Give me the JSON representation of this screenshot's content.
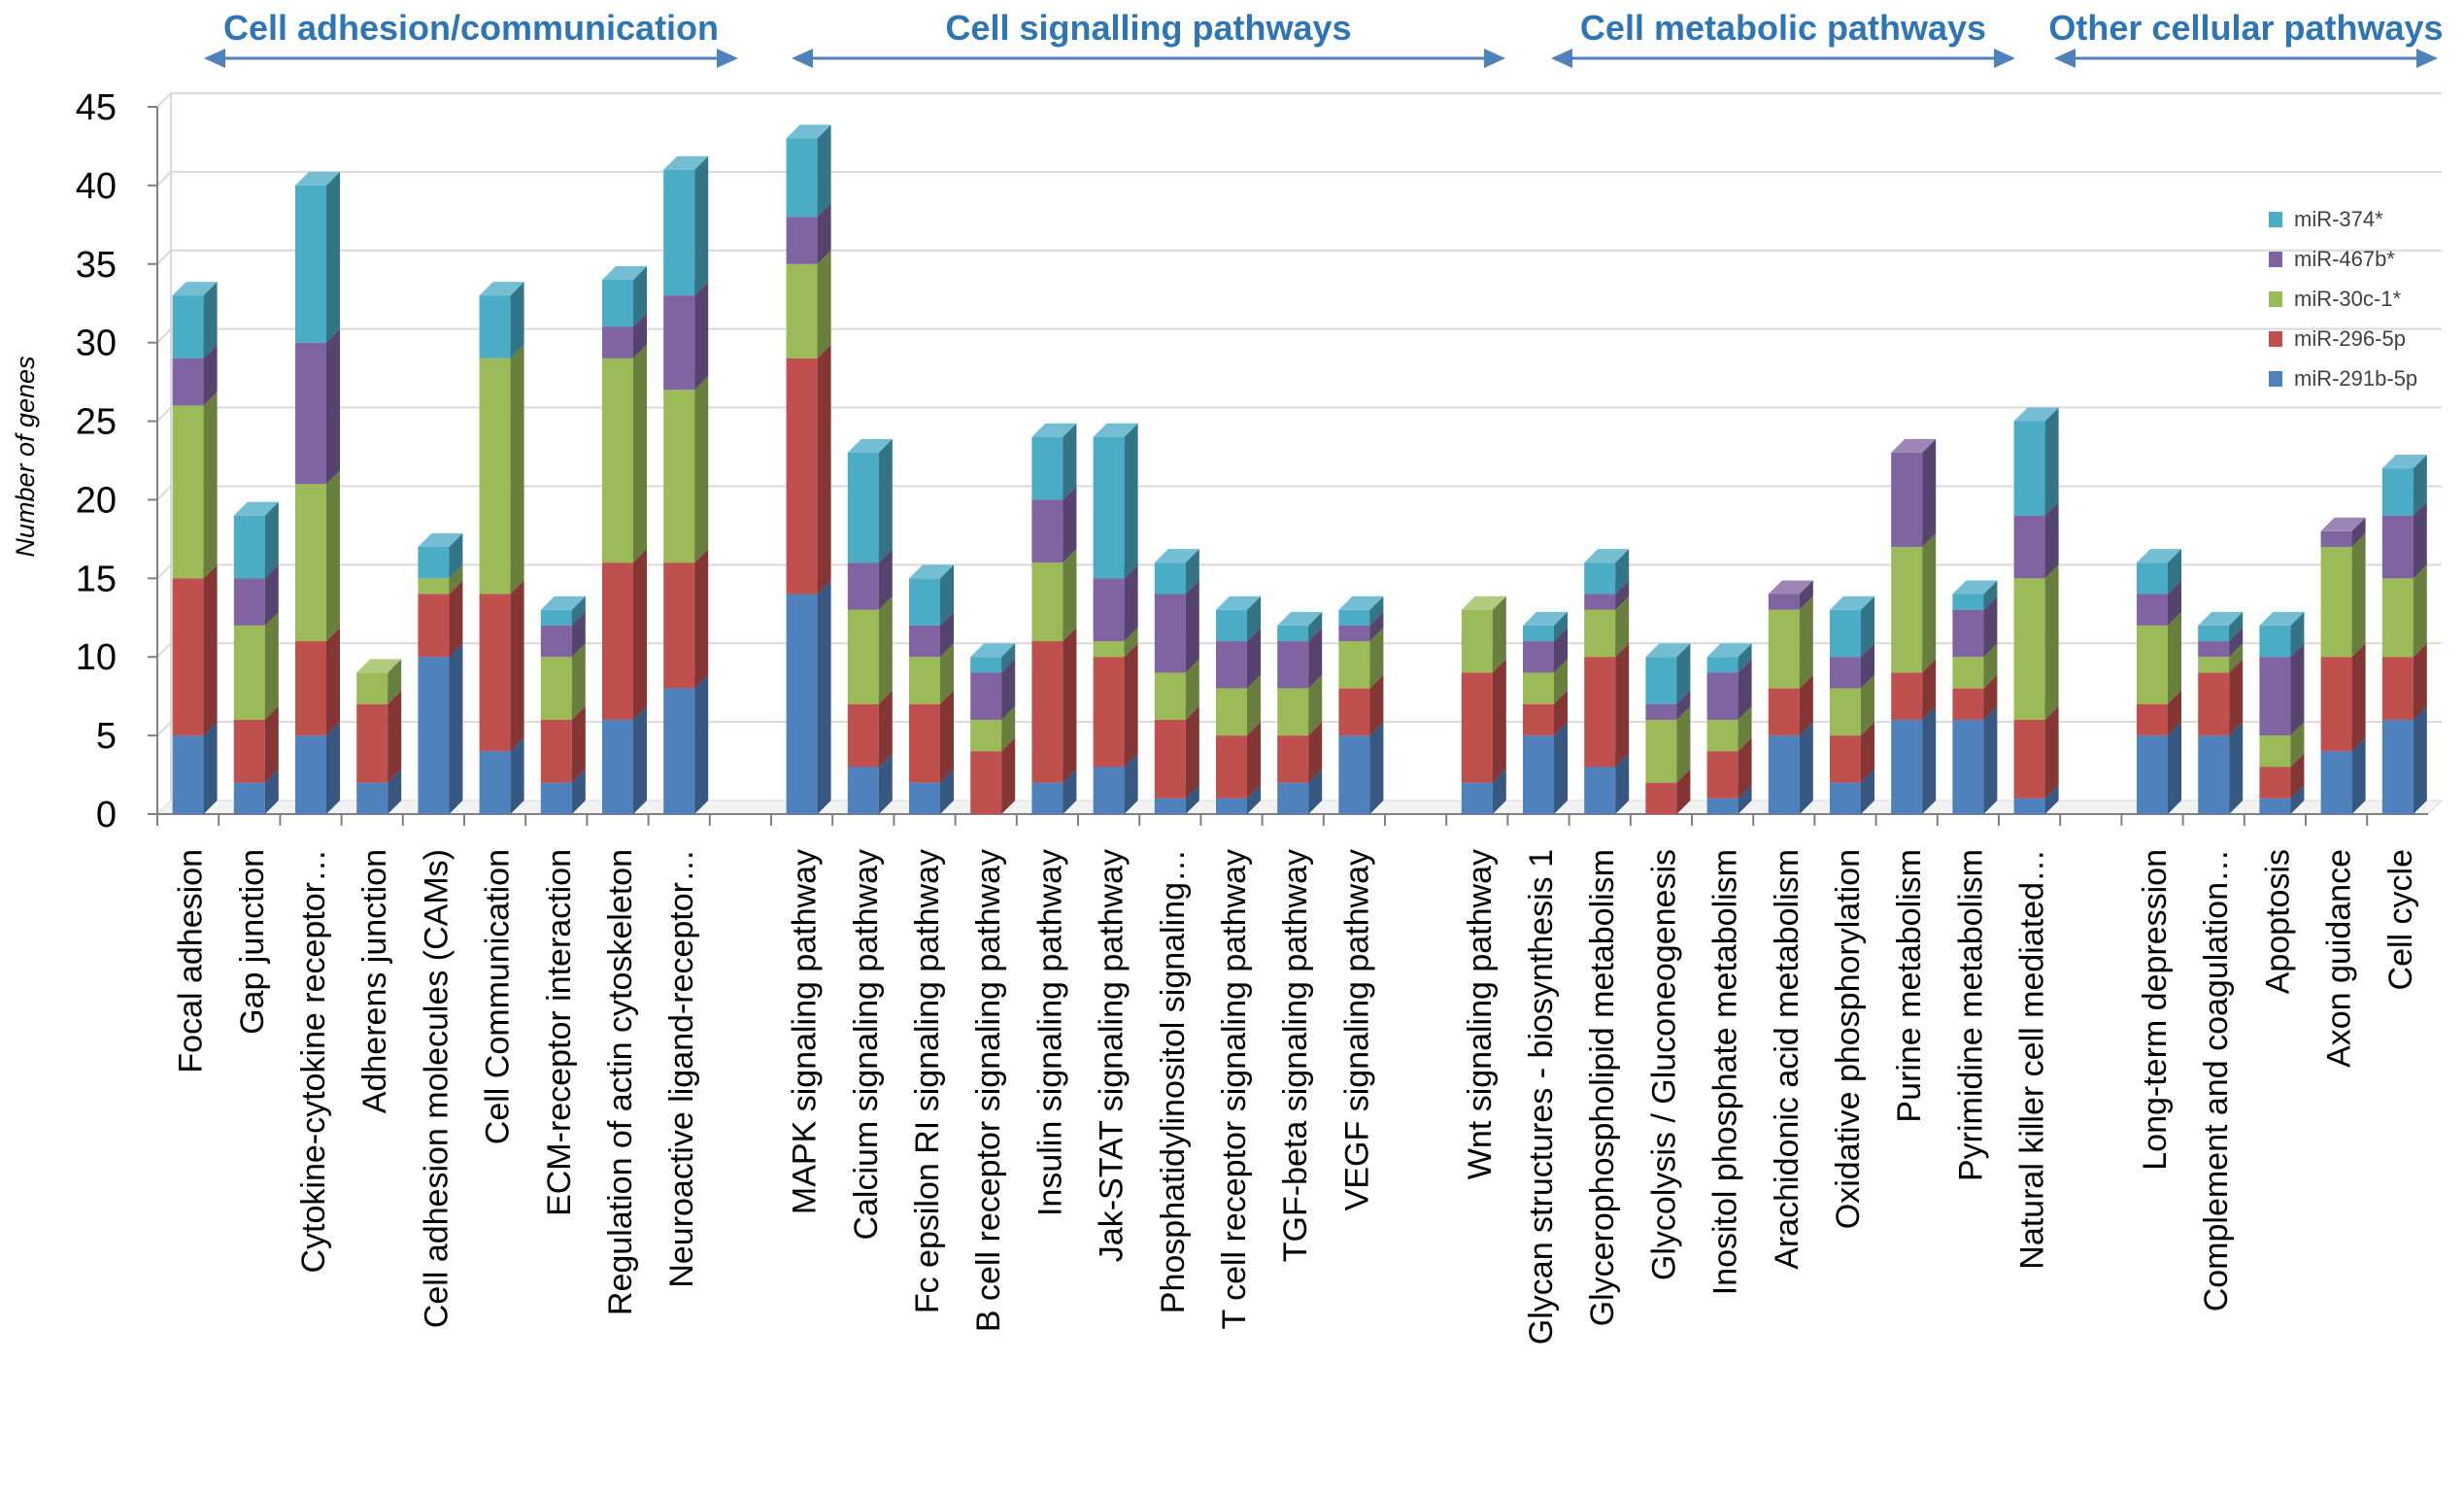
{
  "chart_data": {
    "type": "bar",
    "stacked": true,
    "style": "3d-stacked-column",
    "title": "",
    "xlabel": "",
    "ylabel": "Number of genes",
    "ylim": [
      0,
      45
    ],
    "yticks": [
      0,
      5,
      10,
      15,
      20,
      25,
      30,
      35,
      40,
      45
    ],
    "grid": true,
    "legend_position": "right",
    "groups": [
      {
        "label": "Cell adhesion/communication",
        "start": 0,
        "end": 8
      },
      {
        "label": "Cell signalling pathways",
        "start": 9,
        "end": 19
      },
      {
        "label": "Cell metabolic pathways",
        "start": 20,
        "end": 27
      },
      {
        "label": "Other cellular pathways",
        "start": 28,
        "end": 33
      }
    ],
    "categories": [
      "Focal adhesion",
      "Gap junction",
      "Cytokine-cytokine receptor…",
      "Adherens junction",
      "Cell adhesion molecules (CAMs)",
      "Cell Communication",
      "ECM-receptor interaction",
      "Regulation of actin cytoskeleton",
      "Neuroactive ligand-receptor…",
      "MAPK signaling pathway",
      "Calcium signaling pathway",
      "Fc epsilon RI signaling pathway",
      "B cell receptor signaling pathway",
      "Insulin signaling pathway",
      "Jak-STAT signaling pathway",
      "Phosphatidylinositol signaling…",
      "T cell receptor signaling pathway",
      "TGF-beta signaling pathway",
      "VEGF signaling pathway",
      "Wnt signaling pathway",
      "Glycan structures - biosynthesis 1",
      "Glycerophospholipid metabolism",
      "Glycolysis / Gluconeogenesis",
      "Inositol phosphate metabolism",
      "Arachidonic acid metabolism",
      "Oxidative phosphorylation",
      "Purine metabolism",
      "Pyrimidine metabolism",
      "Natural killer cell mediated…",
      "Long-term depression",
      "Complement and coagulation…",
      "Apoptosis",
      "Axon guidance",
      "Cell cycle"
    ],
    "series": [
      {
        "name": "miR-291b-5p",
        "color": "#4f81bd",
        "values": [
          5,
          2,
          5,
          2,
          10,
          4,
          2,
          6,
          8,
          14,
          3,
          2,
          0,
          2,
          3,
          1,
          1,
          2,
          5,
          2,
          5,
          3,
          0,
          1,
          5,
          2,
          6,
          6,
          1,
          5,
          5,
          1,
          4,
          6
        ]
      },
      {
        "name": "miR-296-5p",
        "color": "#c0504d",
        "values": [
          10,
          4,
          6,
          5,
          4,
          10,
          4,
          10,
          8,
          15,
          4,
          5,
          4,
          9,
          7,
          5,
          4,
          3,
          3,
          7,
          2,
          7,
          2,
          3,
          3,
          3,
          3,
          2,
          5,
          2,
          4,
          2,
          6,
          4
        ]
      },
      {
        "name": "miR-30c-1*",
        "color": "#9bbb59",
        "values": [
          11,
          6,
          10,
          2,
          1,
          15,
          4,
          13,
          11,
          6,
          6,
          3,
          2,
          5,
          1,
          3,
          3,
          3,
          3,
          4,
          2,
          3,
          4,
          2,
          5,
          3,
          8,
          2,
          9,
          5,
          1,
          2,
          7,
          5
        ]
      },
      {
        "name": "miR-467b*",
        "color": "#8064a2",
        "values": [
          3,
          3,
          9,
          0,
          0,
          0,
          2,
          2,
          6,
          3,
          3,
          2,
          3,
          4,
          4,
          5,
          3,
          3,
          1,
          0,
          2,
          1,
          1,
          3,
          1,
          2,
          6,
          3,
          4,
          2,
          1,
          5,
          1,
          4
        ]
      },
      {
        "name": "miR-374*",
        "color": "#4bacc6",
        "values": [
          4,
          4,
          10,
          0,
          2,
          4,
          1,
          3,
          8,
          5,
          7,
          3,
          1,
          4,
          9,
          2,
          2,
          1,
          1,
          0,
          1,
          2,
          3,
          1,
          0,
          3,
          0,
          1,
          6,
          2,
          1,
          2,
          0,
          3
        ]
      }
    ]
  }
}
